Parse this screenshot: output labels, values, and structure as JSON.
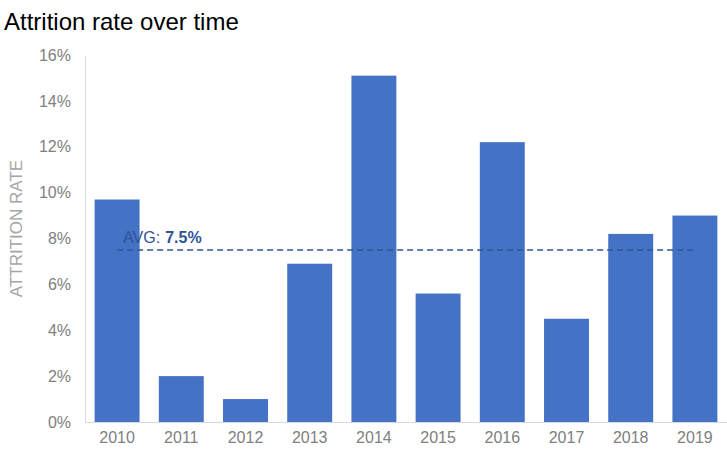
{
  "chart_data": {
    "type": "bar",
    "title": "Attrition rate over time",
    "y_label": "ATTRITION RATE",
    "categories": [
      "2010",
      "2011",
      "2012",
      "2013",
      "2014",
      "2015",
      "2016",
      "2017",
      "2018",
      "2019"
    ],
    "values": [
      9.7,
      2.0,
      1.0,
      6.9,
      15.1,
      5.6,
      12.2,
      4.5,
      8.2,
      9.0
    ],
    "color": "#4472c4",
    "ylim": [
      0,
      16
    ],
    "yticks": [
      {
        "value": 0,
        "label": "0%"
      },
      {
        "value": 2,
        "label": "2%"
      },
      {
        "value": 4,
        "label": "4%"
      },
      {
        "value": 6,
        "label": "6%"
      },
      {
        "value": 8,
        "label": "8%"
      },
      {
        "value": 10,
        "label": "10%"
      },
      {
        "value": 12,
        "label": "12%"
      },
      {
        "value": 14,
        "label": "14%"
      },
      {
        "value": 16,
        "label": "16%"
      }
    ],
    "grid": false,
    "average": {
      "value": 7.5,
      "prefix": "AVG:",
      "label": "7.5%"
    }
  }
}
